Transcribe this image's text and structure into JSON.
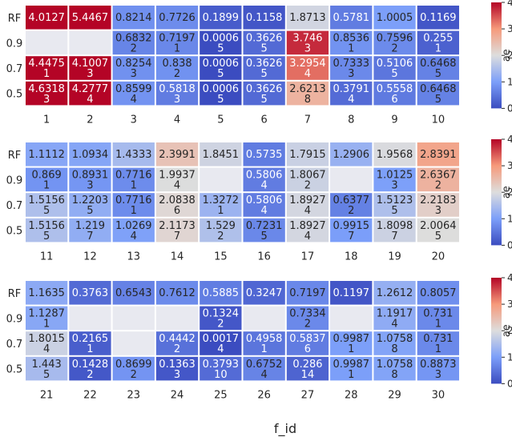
{
  "chart_data": {
    "type": "heatmap",
    "xlabel": "f_id",
    "colorbar_label": "ae",
    "colorbar_ticks": [
      0,
      1,
      2,
      3,
      4
    ],
    "colormap": "coolwarm",
    "vmin": 0,
    "vmax": 4,
    "missing_color": "#e8e9f0",
    "text_color_light": "#ffffff",
    "text_color_dark": "#262626",
    "row_labels": [
      "RF",
      "0.9",
      "0.7",
      "0.5"
    ],
    "panels": [
      {
        "columns": [
          "1",
          "2",
          "3",
          "4",
          "5",
          "6",
          "7",
          "8",
          "9",
          "10"
        ],
        "rows": [
          [
            [
              "4.0127",
              ""
            ],
            [
              "5.4467",
              ""
            ],
            [
              "0.8214",
              ""
            ],
            [
              "0.7726",
              ""
            ],
            [
              "0.1899",
              ""
            ],
            [
              "0.1158",
              ""
            ],
            [
              "1.8713",
              ""
            ],
            [
              "0.5781",
              ""
            ],
            [
              "1.0005",
              ""
            ],
            [
              "0.1169",
              ""
            ]
          ],
          [
            null,
            null,
            [
              "0.6832",
              "2"
            ],
            [
              "0.7197",
              "1"
            ],
            [
              "0.0006",
              "5"
            ],
            [
              "0.3626",
              "5"
            ],
            [
              "3.746",
              "3"
            ],
            [
              "0.8536",
              "1"
            ],
            [
              "0.7596",
              "2"
            ],
            [
              "0.255",
              "1"
            ]
          ],
          [
            [
              "4.4475",
              "1"
            ],
            [
              "4.1007",
              "3"
            ],
            [
              "0.8254",
              "3"
            ],
            [
              "0.838",
              "2"
            ],
            [
              "0.0006",
              "5"
            ],
            [
              "0.3626",
              "5"
            ],
            [
              "3.2954",
              "4"
            ],
            [
              "0.7333",
              "3"
            ],
            [
              "0.5106",
              "5"
            ],
            [
              "0.6468",
              "5"
            ]
          ],
          [
            [
              "4.6318",
              "3"
            ],
            [
              "4.2777",
              "4"
            ],
            [
              "0.8599",
              "4"
            ],
            [
              "0.5818",
              "3"
            ],
            [
              "0.0006",
              "5"
            ],
            [
              "0.3626",
              "5"
            ],
            [
              "2.6213",
              "8"
            ],
            [
              "0.3791",
              "4"
            ],
            [
              "0.5558",
              "6"
            ],
            [
              "0.6468",
              "5"
            ]
          ]
        ]
      },
      {
        "columns": [
          "11",
          "12",
          "13",
          "14",
          "15",
          "16",
          "17",
          "18",
          "19",
          "20"
        ],
        "rows": [
          [
            [
              "1.1112",
              ""
            ],
            [
              "1.0934",
              ""
            ],
            [
              "1.4333",
              ""
            ],
            [
              "2.3991",
              ""
            ],
            [
              "1.8451",
              ""
            ],
            [
              "0.5735",
              ""
            ],
            [
              "1.7915",
              ""
            ],
            [
              "1.2906",
              ""
            ],
            [
              "1.9568",
              ""
            ],
            [
              "2.8391",
              ""
            ]
          ],
          [
            [
              "0.869",
              "1"
            ],
            [
              "0.8931",
              "3"
            ],
            [
              "0.7716",
              "1"
            ],
            [
              "1.9937",
              "4"
            ],
            null,
            [
              "0.5806",
              "4"
            ],
            [
              "1.8067",
              "2"
            ],
            null,
            [
              "1.0125",
              "3"
            ],
            [
              "2.6367",
              "2"
            ]
          ],
          [
            [
              "1.5156",
              "5"
            ],
            [
              "1.2203",
              "5"
            ],
            [
              "0.7716",
              "1"
            ],
            [
              "2.0838",
              "6"
            ],
            [
              "1.3272",
              "1"
            ],
            [
              "0.5806",
              "4"
            ],
            [
              "1.8927",
              "4"
            ],
            [
              "0.6377",
              "2"
            ],
            [
              "1.5123",
              "5"
            ],
            [
              "2.2183",
              "3"
            ]
          ],
          [
            [
              "1.5156",
              "5"
            ],
            [
              "1.219",
              "7"
            ],
            [
              "1.0269",
              "4"
            ],
            [
              "2.1173",
              "7"
            ],
            [
              "1.529",
              "2"
            ],
            [
              "0.7231",
              "5"
            ],
            [
              "1.8927",
              "4"
            ],
            [
              "0.9915",
              "7"
            ],
            [
              "1.8098",
              "7"
            ],
            [
              "2.0064",
              "5"
            ]
          ]
        ]
      },
      {
        "columns": [
          "21",
          "22",
          "23",
          "24",
          "25",
          "26",
          "27",
          "28",
          "29",
          "30"
        ],
        "rows": [
          [
            [
              "1.1635",
              ""
            ],
            [
              "0.3763",
              ""
            ],
            [
              "0.6543",
              ""
            ],
            [
              "0.7612",
              ""
            ],
            [
              "0.5885",
              ""
            ],
            [
              "0.3247",
              ""
            ],
            [
              "0.7197",
              ""
            ],
            [
              "0.1197",
              ""
            ],
            [
              "1.2612",
              ""
            ],
            [
              "0.8057",
              ""
            ]
          ],
          [
            [
              "1.1287",
              "1"
            ],
            null,
            null,
            null,
            [
              "0.1324",
              "2"
            ],
            null,
            [
              "0.7334",
              "2"
            ],
            null,
            [
              "1.1917",
              "4"
            ],
            [
              "0.731",
              "1"
            ]
          ],
          [
            [
              "1.8015",
              "4"
            ],
            [
              "0.2165",
              "1"
            ],
            null,
            [
              "0.4442",
              "2"
            ],
            [
              "0.0017",
              "4"
            ],
            [
              "0.4958",
              "1"
            ],
            [
              "0.5837",
              "6"
            ],
            [
              "0.9987",
              "1"
            ],
            [
              "1.0758",
              "8"
            ],
            [
              "0.731",
              "1"
            ]
          ],
          [
            [
              "1.443",
              "5"
            ],
            [
              "0.1428",
              "2"
            ],
            [
              "0.8699",
              "2"
            ],
            [
              "0.1363",
              "3"
            ],
            [
              "0.3793",
              "10"
            ],
            [
              "0.6752",
              "4"
            ],
            [
              "0.286",
              "14"
            ],
            [
              "0.9987",
              "1"
            ],
            [
              "1.0758",
              "8"
            ],
            [
              "0.8873",
              "3"
            ]
          ]
        ]
      }
    ]
  }
}
